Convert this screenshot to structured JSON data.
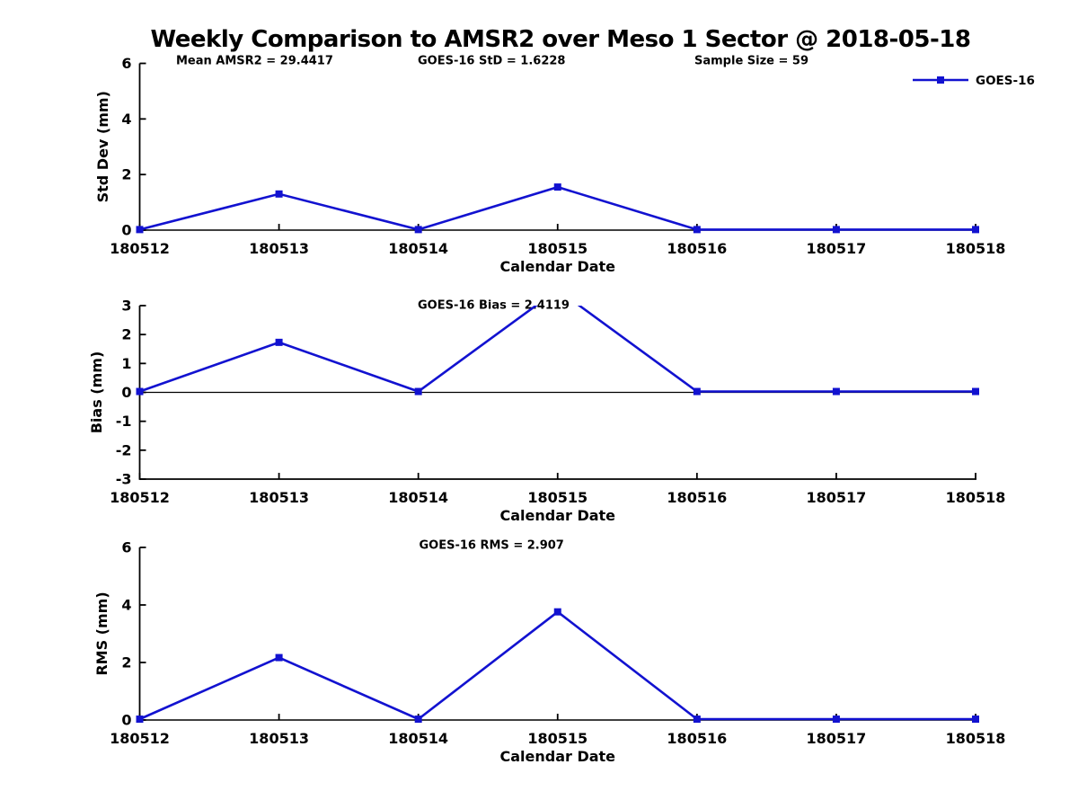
{
  "title": "Weekly Comparison to AMSR2 over Meso 1 Sector @ 2018-05-18",
  "xlabel": "Calendar Date",
  "legend": {
    "label": "GOES-16",
    "position": "top-right"
  },
  "colors": {
    "series": "#1212d0",
    "axis": "#000000",
    "background": "#ffffff"
  },
  "categories": [
    "180512",
    "180513",
    "180514",
    "180515",
    "180516",
    "180517",
    "180518"
  ],
  "chart_data": [
    {
      "type": "line",
      "panel": "std-dev",
      "ylabel": "Std Dev (mm)",
      "xlabel": "Calendar Date",
      "ylim": [
        0,
        6
      ],
      "yticks": [
        0,
        2,
        4,
        6
      ],
      "grid": false,
      "categories": [
        "180512",
        "180513",
        "180514",
        "180515",
        "180516",
        "180517",
        "180518"
      ],
      "series": [
        {
          "name": "GOES-16",
          "values": [
            0.02,
            1.3,
            0.02,
            1.55,
            0.02,
            0.02,
            0.02
          ]
        }
      ],
      "annotations": [
        "Mean AMSR2 = 29.4417",
        "GOES-16 StD = 1.6228",
        "Sample Size = 59"
      ],
      "legend_visible": true
    },
    {
      "type": "line",
      "panel": "bias",
      "ylabel": "Bias (mm)",
      "xlabel": "Calendar Date",
      "ylim": [
        -3,
        3
      ],
      "yticks": [
        -3,
        -2,
        -1,
        0,
        1,
        2,
        3
      ],
      "grid": false,
      "zero_line": true,
      "clip_note": "peak at 180515 exceeds ylim and is clipped at y=3",
      "categories": [
        "180512",
        "180513",
        "180514",
        "180515",
        "180516",
        "180517",
        "180518"
      ],
      "series": [
        {
          "name": "GOES-16",
          "values": [
            0.03,
            1.73,
            0.03,
            3.55,
            0.03,
            0.03,
            0.03
          ]
        }
      ],
      "annotations": [
        "GOES-16 Bias  = 2.4119"
      ],
      "legend_visible": false
    },
    {
      "type": "line",
      "panel": "rms",
      "ylabel": "RMS (mm)",
      "xlabel": "Calendar Date",
      "ylim": [
        0,
        6
      ],
      "yticks": [
        0,
        2,
        4,
        6
      ],
      "grid": false,
      "categories": [
        "180512",
        "180513",
        "180514",
        "180515",
        "180516",
        "180517",
        "180518"
      ],
      "series": [
        {
          "name": "GOES-16",
          "values": [
            0.03,
            2.17,
            0.03,
            3.76,
            0.03,
            0.03,
            0.03
          ]
        }
      ],
      "annotations": [
        "GOES-16 RMS = 2.907"
      ],
      "legend_visible": false
    }
  ]
}
